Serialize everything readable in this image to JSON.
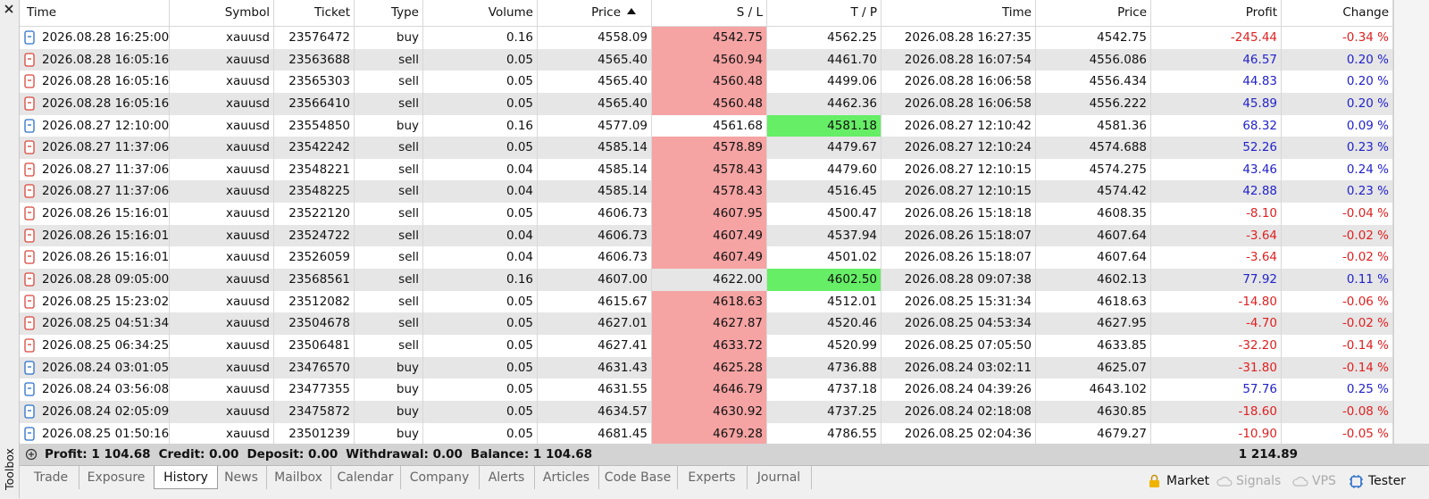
{
  "sidebar": {
    "title": "Toolbox"
  },
  "table": {
    "columns": [
      "Time",
      "Symbol",
      "Ticket",
      "Type",
      "Volume",
      "Price",
      "S / L",
      "T / P",
      "Time",
      "Price",
      "Profit",
      "Change"
    ],
    "sorted_column": 5,
    "rows": [
      [
        "2026.08.28 16:25:00",
        "xauusd",
        "23576472",
        "buy",
        "0.16",
        "4558.09",
        "4542.75",
        "4562.25",
        "2026.08.28 16:27:35",
        "4542.75",
        "-245.44",
        "-0.34 %"
      ],
      [
        "2026.08.28 16:05:16",
        "xauusd",
        "23563688",
        "sell",
        "0.05",
        "4565.40",
        "4560.94",
        "4461.70",
        "2026.08.28 16:07:54",
        "4556.086",
        "46.57",
        "0.20 %"
      ],
      [
        "2026.08.28 16:05:16",
        "xauusd",
        "23565303",
        "sell",
        "0.05",
        "4565.40",
        "4560.48",
        "4499.06",
        "2026.08.28 16:06:58",
        "4556.434",
        "44.83",
        "0.20 %"
      ],
      [
        "2026.08.28 16:05:16",
        "xauusd",
        "23566410",
        "sell",
        "0.05",
        "4565.40",
        "4560.48",
        "4462.36",
        "2026.08.28 16:06:58",
        "4556.222",
        "45.89",
        "0.20 %"
      ],
      [
        "2026.08.27 12:10:00",
        "xauusd",
        "23554850",
        "buy",
        "0.16",
        "4577.09",
        "4561.68",
        "4581.18",
        "2026.08.27 12:10:42",
        "4581.36",
        "68.32",
        "0.09 %"
      ],
      [
        "2026.08.27 11:37:06",
        "xauusd",
        "23542242",
        "sell",
        "0.05",
        "4585.14",
        "4578.89",
        "4479.67",
        "2026.08.27 12:10:24",
        "4574.688",
        "52.26",
        "0.23 %"
      ],
      [
        "2026.08.27 11:37:06",
        "xauusd",
        "23548221",
        "sell",
        "0.04",
        "4585.14",
        "4578.43",
        "4479.60",
        "2026.08.27 12:10:15",
        "4574.275",
        "43.46",
        "0.24 %"
      ],
      [
        "2026.08.27 11:37:06",
        "xauusd",
        "23548225",
        "sell",
        "0.04",
        "4585.14",
        "4578.43",
        "4516.45",
        "2026.08.27 12:10:15",
        "4574.42",
        "42.88",
        "0.23 %"
      ],
      [
        "2026.08.26 15:16:01",
        "xauusd",
        "23522120",
        "sell",
        "0.05",
        "4606.73",
        "4607.95",
        "4500.47",
        "2026.08.26 15:18:18",
        "4608.35",
        "-8.10",
        "-0.04 %"
      ],
      [
        "2026.08.26 15:16:01",
        "xauusd",
        "23524722",
        "sell",
        "0.04",
        "4606.73",
        "4607.49",
        "4537.94",
        "2026.08.26 15:18:07",
        "4607.64",
        "-3.64",
        "-0.02 %"
      ],
      [
        "2026.08.26 15:16:01",
        "xauusd",
        "23526059",
        "sell",
        "0.04",
        "4606.73",
        "4607.49",
        "4501.02",
        "2026.08.26 15:18:07",
        "4607.64",
        "-3.64",
        "-0.02 %"
      ],
      [
        "2026.08.28 09:05:00",
        "xauusd",
        "23568561",
        "sell",
        "0.16",
        "4607.00",
        "4622.00",
        "4602.50",
        "2026.08.28 09:07:38",
        "4602.13",
        "77.92",
        "0.11 %"
      ],
      [
        "2026.08.25 15:23:02",
        "xauusd",
        "23512082",
        "sell",
        "0.05",
        "4615.67",
        "4618.63",
        "4512.01",
        "2026.08.25 15:31:34",
        "4618.63",
        "-14.80",
        "-0.06 %"
      ],
      [
        "2026.08.25 04:51:34",
        "xauusd",
        "23504678",
        "sell",
        "0.05",
        "4627.01",
        "4627.87",
        "4520.46",
        "2026.08.25 04:53:34",
        "4627.95",
        "-4.70",
        "-0.02 %"
      ],
      [
        "2026.08.25 06:34:25",
        "xauusd",
        "23506481",
        "sell",
        "0.05",
        "4627.41",
        "4633.72",
        "4520.99",
        "2026.08.25 07:05:50",
        "4633.85",
        "-32.20",
        "-0.14 %"
      ],
      [
        "2026.08.24 03:01:05",
        "xauusd",
        "23476570",
        "buy",
        "0.05",
        "4631.43",
        "4625.28",
        "4736.88",
        "2026.08.24 03:02:11",
        "4625.07",
        "-31.80",
        "-0.14 %"
      ],
      [
        "2026.08.24 03:56:08",
        "xauusd",
        "23477355",
        "buy",
        "0.05",
        "4631.55",
        "4646.79",
        "4737.18",
        "2026.08.24 04:39:26",
        "4643.102",
        "57.76",
        "0.25 %"
      ],
      [
        "2026.08.24 02:05:09",
        "xauusd",
        "23475872",
        "buy",
        "0.05",
        "4634.57",
        "4630.92",
        "4737.25",
        "2026.08.24 02:18:08",
        "4630.85",
        "-18.60",
        "-0.08 %"
      ],
      [
        "2026.08.25 01:50:16",
        "xauusd",
        "23501239",
        "buy",
        "0.05",
        "4681.45",
        "4679.28",
        "4786.55",
        "2026.08.25 02:04:36",
        "4679.27",
        "-10.90",
        "-0.05 %"
      ]
    ],
    "highlight": [
      "sl",
      "sl",
      "sl",
      "sl",
      "tp",
      "sl",
      "sl",
      "sl",
      "sl",
      "sl",
      "sl",
      "tp",
      "sl",
      "sl",
      "sl",
      "sl",
      "sl",
      "sl",
      "sl"
    ],
    "highlight_colors": {
      "sl": "#f5a3a3",
      "tp": "#66ee66"
    }
  },
  "summary": {
    "items": [
      "Profit: 1 104.68",
      "Credit: 0.00",
      "Deposit: 0.00",
      "Withdrawal: 0.00",
      "Balance: 1 104.68"
    ],
    "total": "1 214.89"
  },
  "tabs": {
    "items": [
      "Trade",
      "Exposure",
      "History",
      "News",
      "Mailbox",
      "Calendar",
      "Company",
      "Alerts",
      "Articles",
      "Code Base",
      "Experts",
      "Journal"
    ],
    "active": "History"
  },
  "status": [
    {
      "label": "Market",
      "enabled": true
    },
    {
      "label": "Signals",
      "enabled": false
    },
    {
      "label": "VPS",
      "enabled": false
    },
    {
      "label": "Tester",
      "enabled": true
    }
  ]
}
